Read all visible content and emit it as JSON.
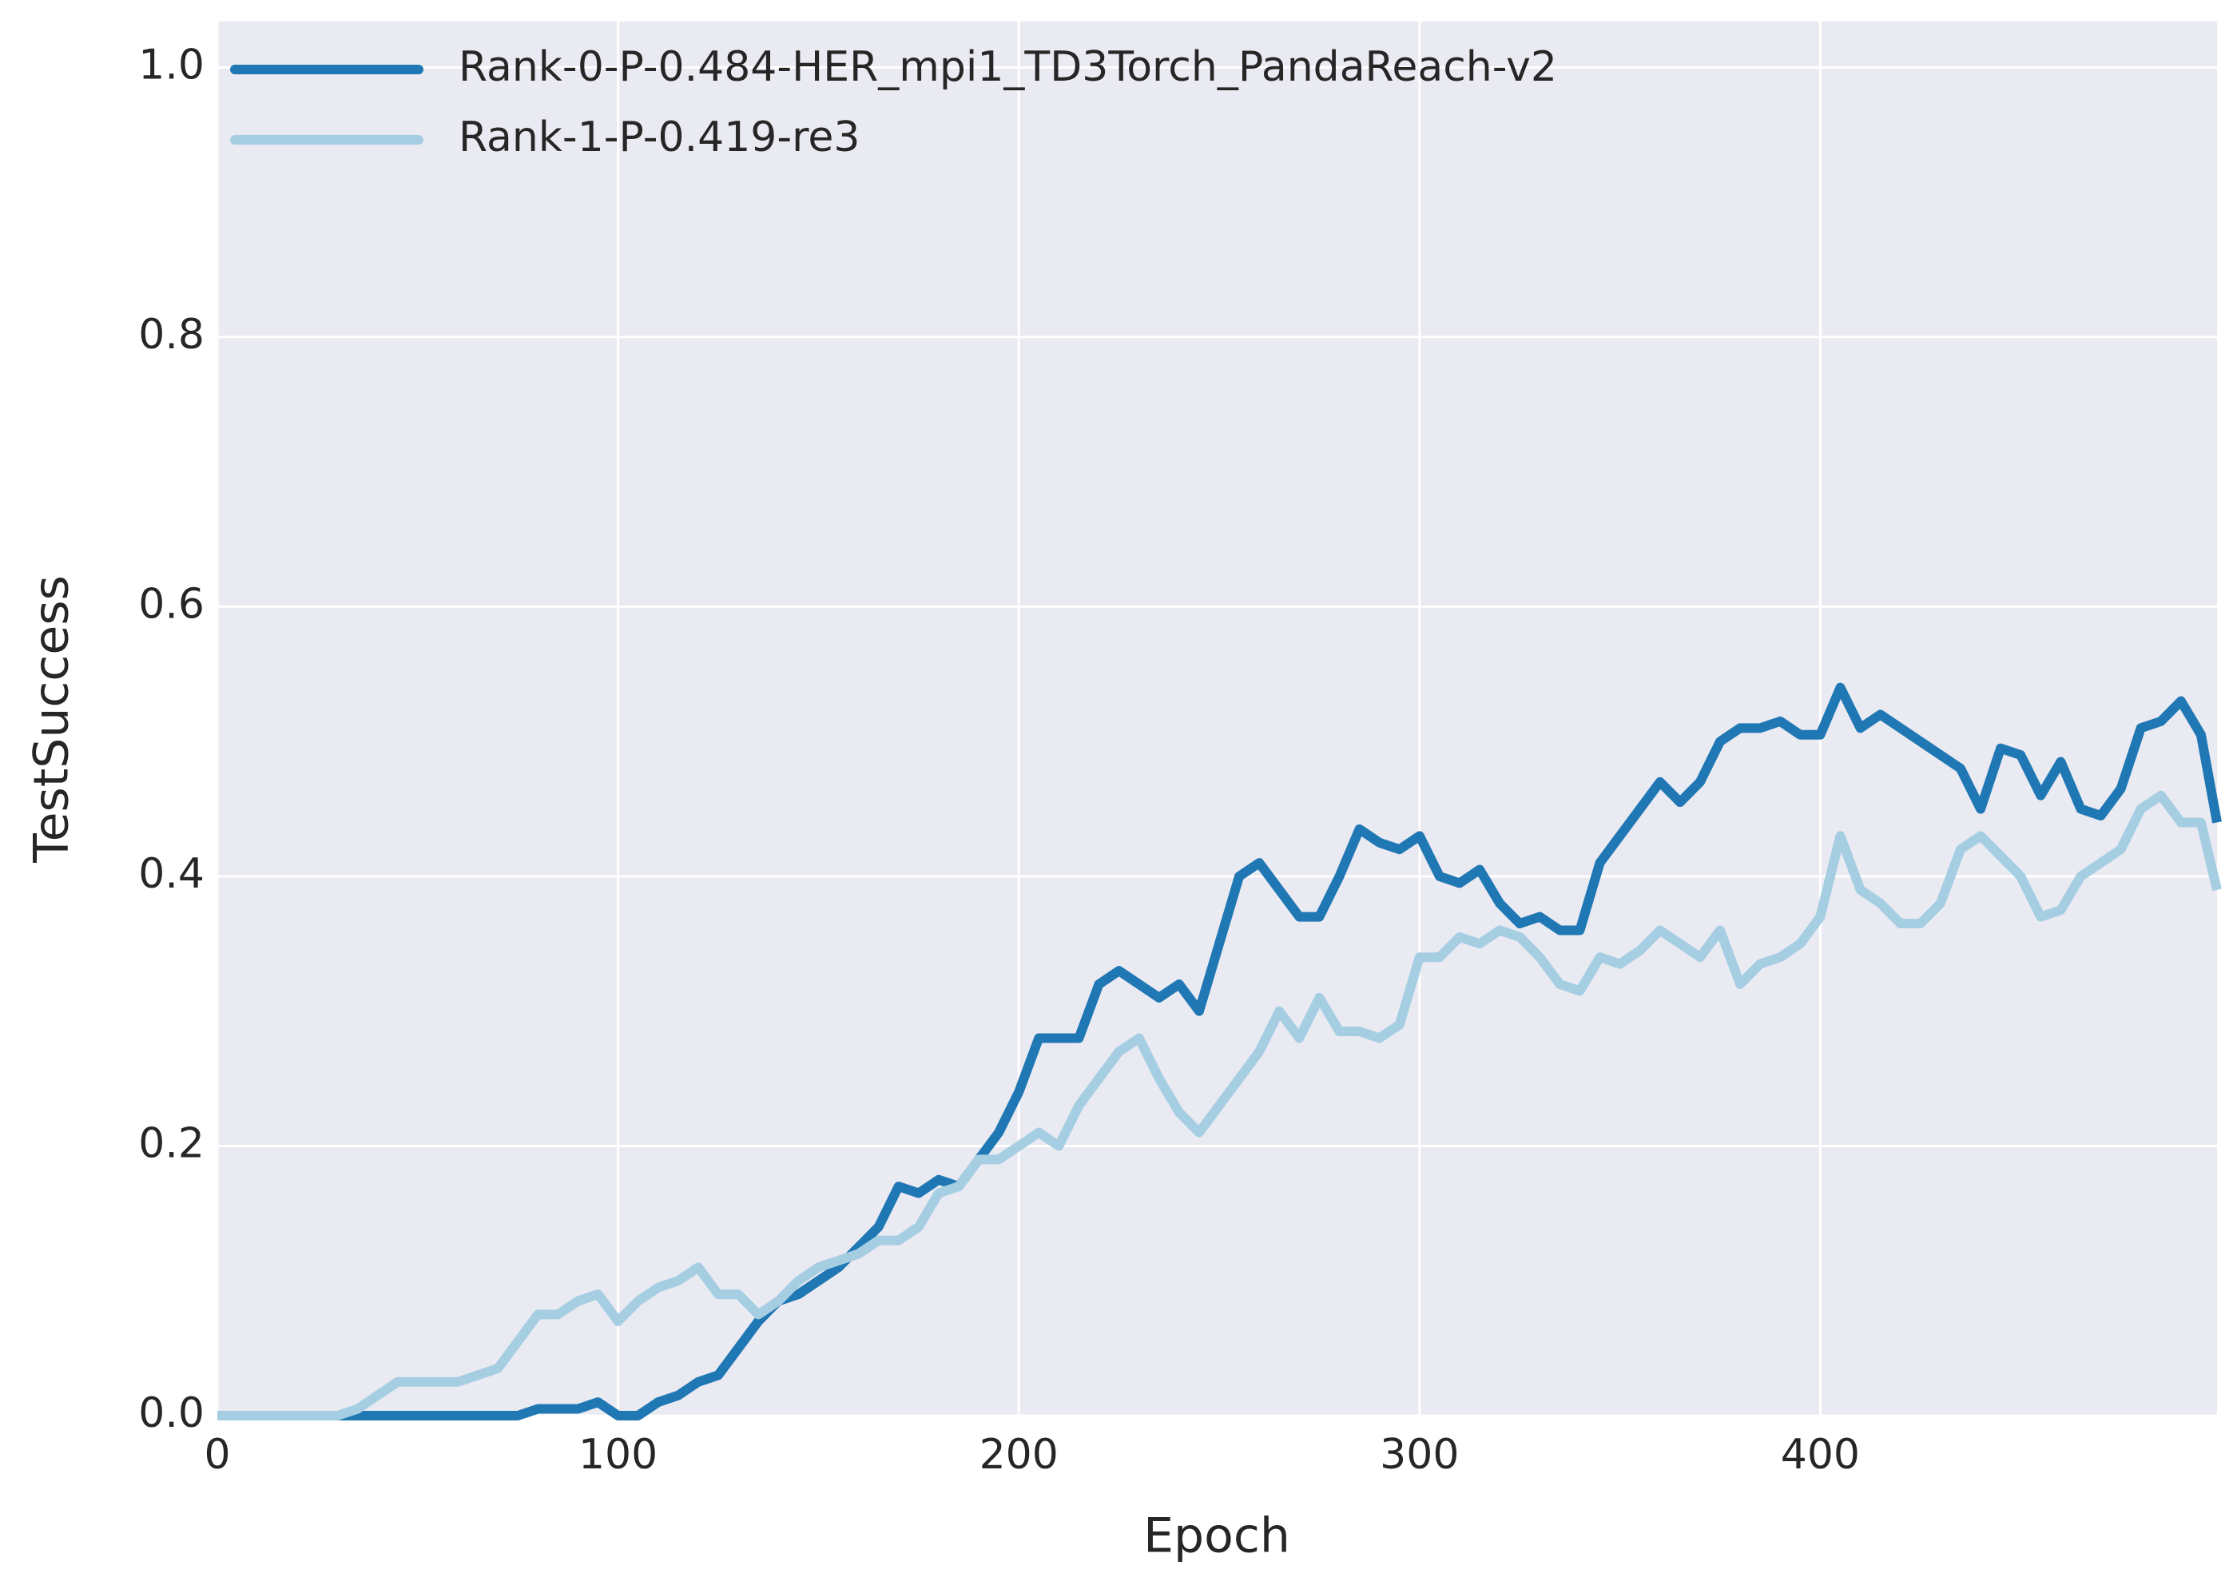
{
  "chart_data": {
    "type": "line",
    "x_label": "Epoch",
    "y_label": "TestSuccess",
    "x": [
      0,
      5,
      10,
      15,
      20,
      25,
      30,
      35,
      40,
      45,
      50,
      55,
      60,
      65,
      70,
      75,
      80,
      85,
      90,
      95,
      100,
      105,
      110,
      115,
      120,
      125,
      130,
      135,
      140,
      145,
      150,
      155,
      160,
      165,
      170,
      175,
      180,
      185,
      190,
      195,
      200,
      205,
      210,
      215,
      220,
      225,
      230,
      235,
      240,
      245,
      250,
      255,
      260,
      265,
      270,
      275,
      280,
      285,
      290,
      295,
      300,
      305,
      310,
      315,
      320,
      325,
      330,
      335,
      340,
      345,
      350,
      355,
      360,
      365,
      370,
      375,
      380,
      385,
      390,
      395,
      400,
      405,
      410,
      415,
      420,
      425,
      430,
      435,
      440,
      445,
      450,
      455,
      460,
      465,
      470,
      475,
      480,
      485,
      490,
      495,
      499
    ],
    "series": [
      {
        "name": "Rank-0-P-0.484-HER_mpi1_TD3Torch_PandaReach-v2",
        "color": "#1f77b4",
        "values": [
          0,
          0,
          0,
          0,
          0,
          0,
          0,
          0,
          0,
          0,
          0,
          0,
          0,
          0,
          0,
          0,
          0.005,
          0.005,
          0.005,
          0.01,
          0,
          0,
          0.01,
          0.015,
          0.025,
          0.03,
          0.05,
          0.07,
          0.085,
          0.09,
          0.1,
          0.11,
          0.125,
          0.14,
          0.17,
          0.165,
          0.175,
          0.17,
          0.19,
          0.21,
          0.24,
          0.28,
          0.28,
          0.28,
          0.32,
          0.33,
          0.32,
          0.31,
          0.32,
          0.3,
          0.35,
          0.4,
          0.41,
          0.39,
          0.37,
          0.37,
          0.4,
          0.435,
          0.425,
          0.42,
          0.43,
          0.4,
          0.395,
          0.405,
          0.38,
          0.365,
          0.37,
          0.36,
          0.36,
          0.41,
          0.43,
          0.45,
          0.47,
          0.455,
          0.47,
          0.5,
          0.51,
          0.51,
          0.515,
          0.505,
          0.505,
          0.54,
          0.51,
          0.52,
          0.51,
          0.5,
          0.49,
          0.48,
          0.45,
          0.495,
          0.49,
          0.46,
          0.485,
          0.45,
          0.445,
          0.465,
          0.51,
          0.515,
          0.53,
          0.505,
          0.44
        ]
      },
      {
        "name": "Rank-1-P-0.419-re3",
        "color": "#a6cee3",
        "values": [
          0,
          0,
          0,
          0,
          0,
          0,
          0,
          0.005,
          0.015,
          0.025,
          0.025,
          0.025,
          0.025,
          0.03,
          0.035,
          0.055,
          0.075,
          0.075,
          0.085,
          0.09,
          0.07,
          0.085,
          0.095,
          0.1,
          0.11,
          0.09,
          0.09,
          0.075,
          0.085,
          0.1,
          0.11,
          0.115,
          0.12,
          0.13,
          0.13,
          0.14,
          0.165,
          0.17,
          0.19,
          0.19,
          0.2,
          0.21,
          0.2,
          0.23,
          0.25,
          0.27,
          0.28,
          0.25,
          0.225,
          0.21,
          0.23,
          0.25,
          0.27,
          0.3,
          0.28,
          0.31,
          0.285,
          0.285,
          0.28,
          0.29,
          0.34,
          0.34,
          0.355,
          0.35,
          0.36,
          0.355,
          0.34,
          0.32,
          0.315,
          0.34,
          0.335,
          0.345,
          0.36,
          0.35,
          0.34,
          0.36,
          0.32,
          0.335,
          0.34,
          0.35,
          0.37,
          0.43,
          0.39,
          0.38,
          0.365,
          0.365,
          0.38,
          0.42,
          0.43,
          0.415,
          0.4,
          0.37,
          0.375,
          0.4,
          0.41,
          0.42,
          0.45,
          0.46,
          0.44,
          0.44,
          0.39
        ]
      }
    ],
    "xlim": [
      0,
      499
    ],
    "ylim": [
      0,
      1.034
    ],
    "xticks": [
      0,
      100,
      200,
      300,
      400
    ],
    "yticks": [
      {
        "value": 0,
        "label": "0.0"
      },
      {
        "value": 0.2,
        "label": "0.2"
      },
      {
        "value": 0.4,
        "label": "0.4"
      },
      {
        "value": 0.6,
        "label": "0.6"
      },
      {
        "value": 0.8,
        "label": "0.8"
      },
      {
        "value": 1.0,
        "label": "1.0"
      }
    ],
    "grid": true,
    "legend": "upper left"
  }
}
